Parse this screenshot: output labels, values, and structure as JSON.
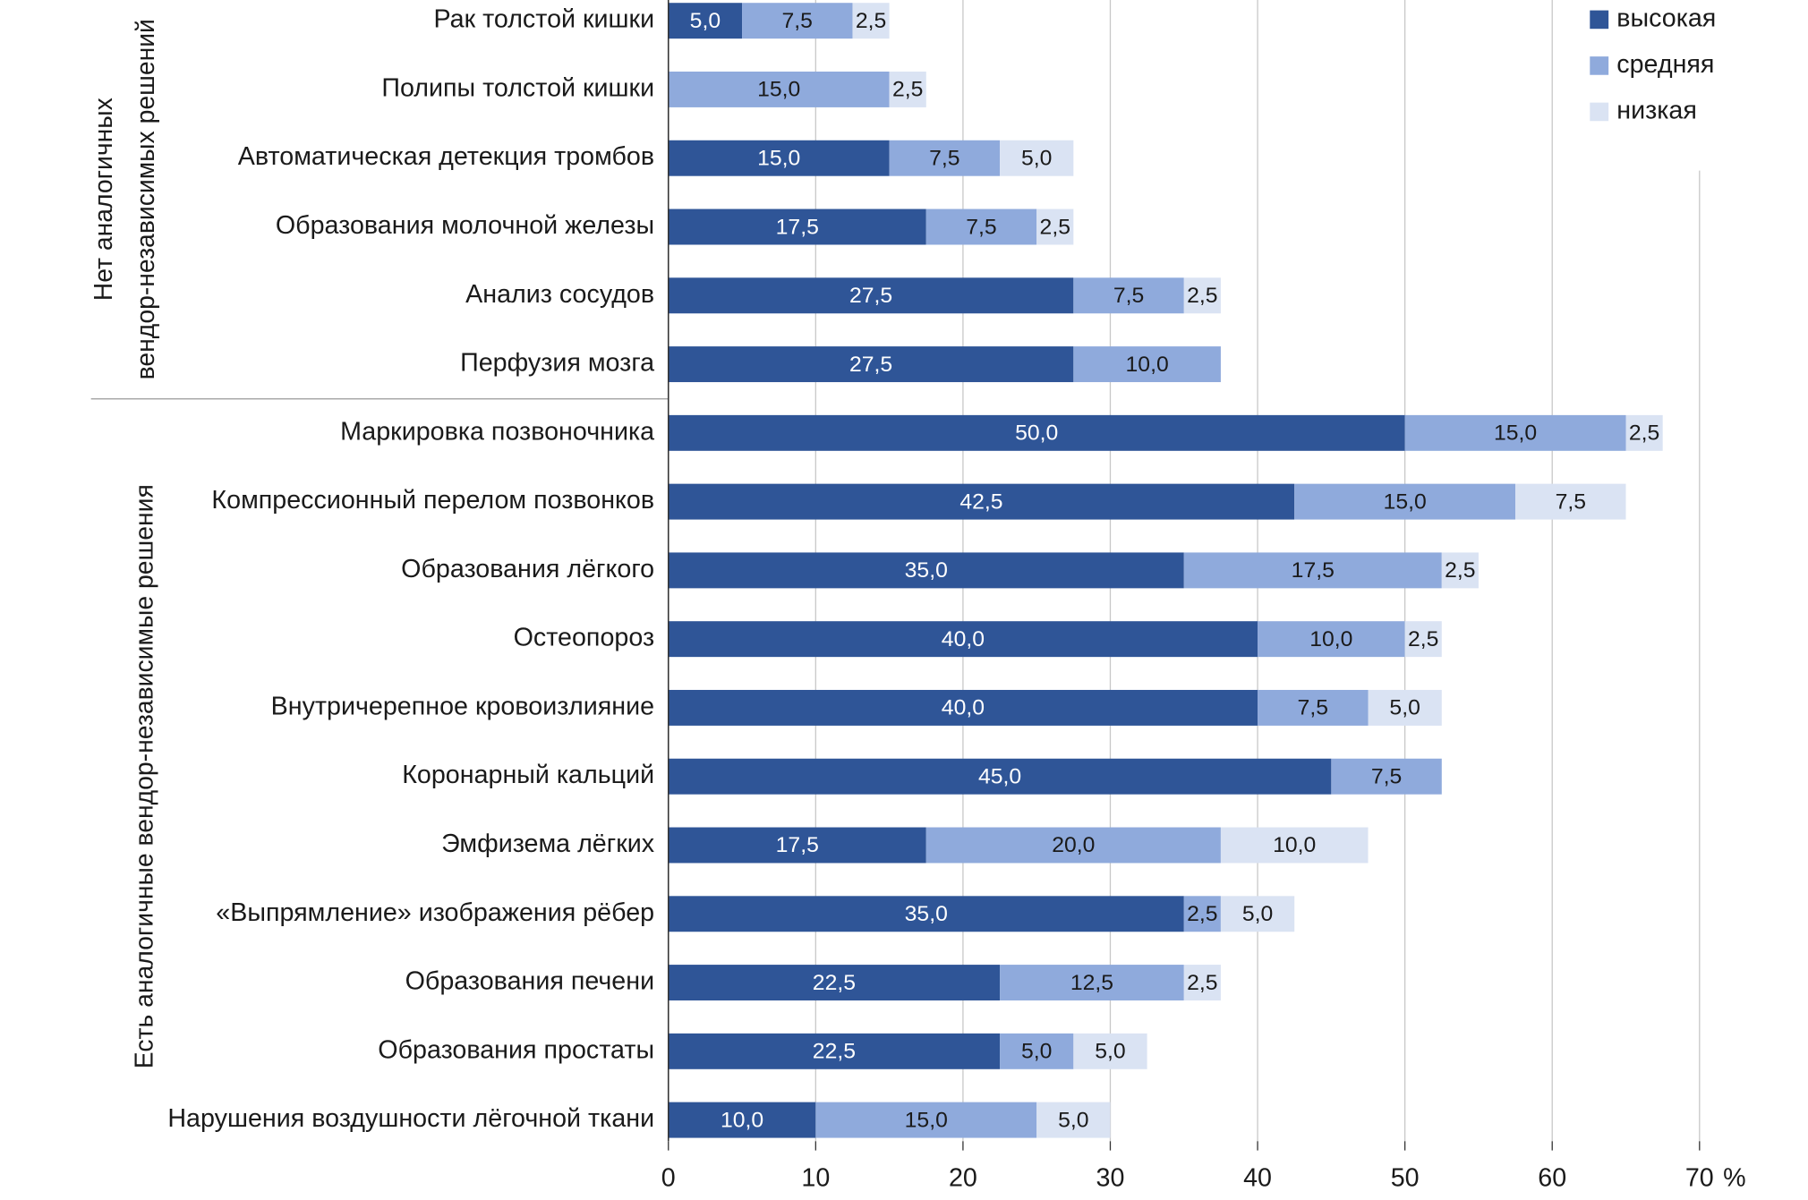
{
  "chart_data": {
    "type": "stacked-barh",
    "categories": [
      "Рак толстой кишки",
      "Полипы толстой кишки",
      "Автоматическая детекция тромбов",
      "Образования молочной железы",
      "Анализ сосудов",
      "Перфузия мозга",
      "Маркировка позвоночника",
      "Компрессионный перелом позвонков",
      "Образования лёгкого",
      "Остеопороз",
      "Внутричерепное кровоизлияние",
      "Коронарный кальций",
      "Эмфизема лёгких",
      "«Выпрямление» изображения рёбер",
      "Образования печени",
      "Образования простаты",
      "Нарушения воздушности лёгочной ткани"
    ],
    "groups": [
      {
        "label": [
          "Нет аналогичных",
          "вендор-независимых решений"
        ]
      },
      {
        "label": [
          "Есть аналогичные вендор-независимые решения"
        ]
      }
    ],
    "series": [
      {
        "name": "высокая",
        "color": "#2f5597",
        "label_color": "#ffffff",
        "values": [
          5.0,
          null,
          15.0,
          17.5,
          27.5,
          27.5,
          50.0,
          42.5,
          35.0,
          40.0,
          40.0,
          45.0,
          17.5,
          35.0,
          22.5,
          22.5,
          10.0
        ],
        "value_labels": [
          "5,0",
          null,
          "15,0",
          "17,5",
          "27,5",
          "27,5",
          "50,0",
          "42,5",
          "35,0",
          "40,0",
          "40,0",
          "45,0",
          "17,5",
          "35,0",
          "22,5",
          "22,5",
          "10,0"
        ]
      },
      {
        "name": "средняя",
        "color": "#8faadc",
        "label_color": "#1a1a1a",
        "values": [
          7.5,
          15.0,
          7.5,
          7.5,
          7.5,
          10.0,
          15.0,
          15.0,
          17.5,
          10.0,
          7.5,
          7.5,
          20.0,
          2.5,
          12.5,
          5.0,
          15.0
        ],
        "value_labels": [
          "7,5",
          "15,0",
          "7,5",
          "7,5",
          "7,5",
          "10,0",
          "15,0",
          "15,0",
          "17,5",
          "10,0",
          "7,5",
          "7,5",
          "20,0",
          "2,5",
          "12,5",
          "5,0",
          "15,0"
        ]
      },
      {
        "name": "низкая",
        "color": "#dae3f3",
        "label_color": "#1a1a1a",
        "values": [
          2.5,
          2.5,
          5.0,
          2.5,
          2.5,
          null,
          2.5,
          7.5,
          2.5,
          2.5,
          5.0,
          null,
          10.0,
          5.0,
          2.5,
          5.0,
          5.0
        ],
        "value_labels": [
          "2,5",
          "2,5",
          "5,0",
          "2,5",
          "2,5",
          null,
          "2,5",
          "7,5",
          "2,5",
          "2,5",
          "5,0",
          null,
          "10,0",
          "5,0",
          "2,5",
          "5,0",
          "5,0"
        ]
      }
    ],
    "xlim": [
      0,
      70
    ],
    "xticks": [
      0,
      10,
      20,
      30,
      40,
      50,
      60,
      70
    ],
    "x_unit": "%",
    "grid": true,
    "legend": "top-right"
  }
}
